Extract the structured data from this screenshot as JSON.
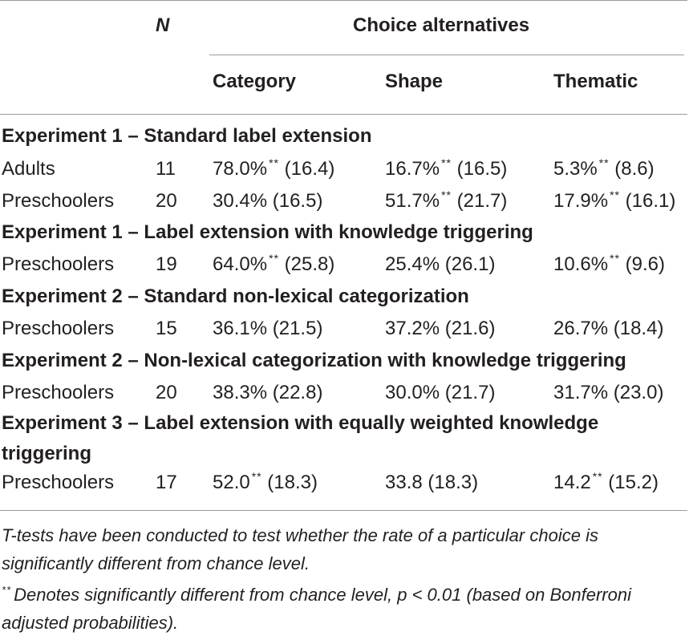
{
  "header": {
    "n_label": "N",
    "group_label": "Choice alternatives",
    "columns": [
      "Category",
      "Shape",
      "Thematic"
    ]
  },
  "sig_marker": "**",
  "sections": [
    {
      "title": "Experiment 1 – Standard label extension",
      "rows": [
        {
          "group": "Adults",
          "n": "11",
          "category": {
            "value": "78.0%",
            "sig": true,
            "sd": "(16.4)"
          },
          "shape": {
            "value": "16.7%",
            "sig": true,
            "sd": "(16.5)"
          },
          "thematic": {
            "value": "5.3%",
            "sig": true,
            "sd": "(8.6)"
          }
        },
        {
          "group": "Preschoolers",
          "n": "20",
          "category": {
            "value": "30.4%",
            "sig": false,
            "sd": "(16.5)"
          },
          "shape": {
            "value": "51.7%",
            "sig": true,
            "sd": "(21.7)"
          },
          "thematic": {
            "value": "17.9%",
            "sig": true,
            "sd": "(16.1)"
          }
        }
      ]
    },
    {
      "title": "Experiment 1 – Label extension with knowledge triggering",
      "rows": [
        {
          "group": "Preschoolers",
          "n": "19",
          "category": {
            "value": "64.0%",
            "sig": true,
            "sd": "(25.8)"
          },
          "shape": {
            "value": "25.4%",
            "sig": false,
            "sd": "(26.1)"
          },
          "thematic": {
            "value": "10.6%",
            "sig": true,
            "sd": "(9.6)"
          }
        }
      ]
    },
    {
      "title": "Experiment 2 – Standard non-lexical categorization",
      "rows": [
        {
          "group": "Preschoolers",
          "n": "15",
          "category": {
            "value": "36.1%",
            "sig": false,
            "sd": "(21.5)"
          },
          "shape": {
            "value": "37.2%",
            "sig": false,
            "sd": "(21.6)"
          },
          "thematic": {
            "value": "26.7%",
            "sig": false,
            "sd": "(18.4)"
          }
        }
      ]
    },
    {
      "title": "Experiment 2 – Non-lexical categorization with knowledge triggering",
      "rows": [
        {
          "group": "Preschoolers",
          "n": "20",
          "category": {
            "value": "38.3%",
            "sig": false,
            "sd": "(22.8)"
          },
          "shape": {
            "value": "30.0%",
            "sig": false,
            "sd": "(21.7)"
          },
          "thematic": {
            "value": "31.7%",
            "sig": false,
            "sd": "(23.0)"
          }
        }
      ]
    },
    {
      "title": "Experiment 3 – Label extension with equally weighted knowledge triggering",
      "rows": [
        {
          "group": "Preschoolers",
          "n": "17",
          "category": {
            "value": "52.0",
            "sig": true,
            "sd": "(18.3)"
          },
          "shape": {
            "value": "33.8",
            "sig": false,
            "sd": "(18.3)"
          },
          "thematic": {
            "value": "14.2",
            "sig": true,
            "sd": "(15.2)"
          }
        }
      ]
    }
  ],
  "footnotes": {
    "note": "T-tests have been conducted to test whether the rate of a particular choice is significantly different from chance level.",
    "sig_note": "Denotes significantly different from chance level, p < 0.01 (based on Bonferroni adjusted probabilities)."
  }
}
